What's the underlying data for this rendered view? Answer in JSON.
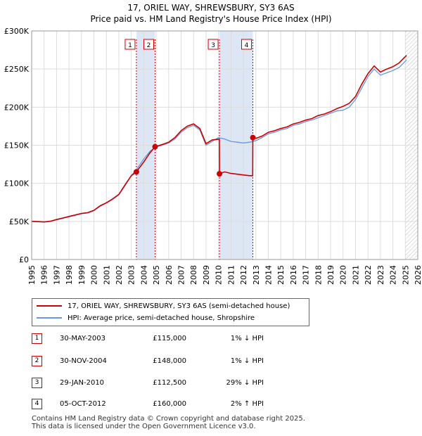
{
  "title": "17, ORIEL WAY, SHREWSBURY, SY3 6AS",
  "subtitle": "Price paid vs. HM Land Registry's House Price Index (HPI)",
  "colors": {
    "property": "#cc0000",
    "hpi": "#6699dd",
    "shade": "#dde6f5",
    "grid": "#dddddd",
    "marker_border": "#cc0000"
  },
  "legend": {
    "property_label": "17, ORIEL WAY, SHREWSBURY, SY3 6AS (semi-detached house)",
    "hpi_label": "HPI: Average price, semi-detached house, Shropshire"
  },
  "transactions": [
    {
      "num": "1",
      "date": "30-MAY-2003",
      "price": "£115,000",
      "hpi": "1% ↓ HPI"
    },
    {
      "num": "2",
      "date": "30-NOV-2004",
      "price": "£148,000",
      "hpi": "1% ↓ HPI"
    },
    {
      "num": "3",
      "date": "29-JAN-2010",
      "price": "£112,500",
      "hpi": "29% ↓ HPI"
    },
    {
      "num": "4",
      "date": "05-OCT-2012",
      "price": "£160,000",
      "hpi": "2% ↑ HPI"
    }
  ],
  "footer": {
    "line1": "Contains HM Land Registry data © Crown copyright and database right 2025.",
    "line2": "This data is licensed under the Open Government Licence v3.0."
  },
  "chart_data": {
    "type": "line",
    "title": "17, ORIEL WAY, SHREWSBURY, SY3 6AS",
    "subtitle": "Price paid vs. HM Land Registry's House Price Index (HPI)",
    "xlabel": "",
    "ylabel": "",
    "xlim": [
      1995,
      2026
    ],
    "ylim": [
      0,
      300000
    ],
    "x_ticks": [
      1995,
      1996,
      1997,
      1998,
      1999,
      2000,
      2001,
      2002,
      2003,
      2004,
      2005,
      2006,
      2007,
      2008,
      2009,
      2010,
      2011,
      2012,
      2013,
      2014,
      2015,
      2016,
      2017,
      2018,
      2019,
      2020,
      2021,
      2022,
      2023,
      2024,
      2025,
      2026
    ],
    "y_ticks": [
      {
        "value": 0,
        "label": "£0"
      },
      {
        "value": 50000,
        "label": "£50K"
      },
      {
        "value": 100000,
        "label": "£100K"
      },
      {
        "value": 150000,
        "label": "£150K"
      },
      {
        "value": 200000,
        "label": "£200K"
      },
      {
        "value": 250000,
        "label": "£250K"
      },
      {
        "value": 300000,
        "label": "£300K"
      }
    ],
    "grid": true,
    "legend_position": "bottom",
    "shaded_ranges": [
      [
        2003.41,
        2004.91
      ],
      [
        2010.08,
        2012.76
      ]
    ],
    "forecast_start": 2025.0,
    "sales": [
      {
        "label": "1",
        "x": 2003.41,
        "y": 115000
      },
      {
        "label": "2",
        "x": 2004.91,
        "y": 148000
      },
      {
        "label": "3",
        "x": 2010.08,
        "y": 112500
      },
      {
        "label": "4",
        "x": 2012.76,
        "y": 160000
      }
    ],
    "series": [
      {
        "name": "HPI: Average price, semi-detached house, Shropshire",
        "x": [
          1995,
          1995.5,
          1996,
          1996.5,
          1997,
          1997.5,
          1998,
          1998.5,
          1999,
          1999.5,
          2000,
          2000.5,
          2001,
          2001.5,
          2002,
          2002.5,
          2003,
          2003.5,
          2004,
          2004.5,
          2005,
          2005.5,
          2006,
          2006.5,
          2007,
          2007.5,
          2008,
          2008.5,
          2009,
          2009.5,
          2010,
          2010.5,
          2011,
          2011.5,
          2012,
          2012.5,
          2013,
          2013.5,
          2014,
          2014.5,
          2015,
          2015.5,
          2016,
          2016.5,
          2017,
          2017.5,
          2018,
          2018.5,
          2019,
          2019.5,
          2020,
          2020.5,
          2021,
          2021.5,
          2022,
          2022.5,
          2023,
          2023.5,
          2024,
          2024.5,
          2025.1
        ],
        "values": [
          50000,
          49500,
          49000,
          50000,
          52000,
          54000,
          56000,
          58000,
          60000,
          61000,
          64000,
          70000,
          74000,
          79000,
          85000,
          97000,
          110000,
          120000,
          132000,
          142000,
          148000,
          150000,
          153000,
          158000,
          167000,
          173000,
          176000,
          170000,
          150000,
          155000,
          160000,
          158000,
          155000,
          154000,
          153000,
          154000,
          156000,
          160000,
          165000,
          167000,
          170000,
          172000,
          176000,
          178000,
          181000,
          183000,
          186000,
          189000,
          192000,
          195000,
          196000,
          200000,
          210000,
          225000,
          240000,
          250000,
          242000,
          245000,
          248000,
          252000,
          262000
        ]
      },
      {
        "name": "17, ORIEL WAY, SHREWSBURY, SY3 6AS (semi-detached house)",
        "x": [
          1995,
          1995.5,
          1996,
          1996.5,
          1997,
          1997.5,
          1998,
          1998.5,
          1999,
          1999.5,
          2000,
          2000.5,
          2001,
          2001.5,
          2002,
          2002.5,
          2003,
          2003.41,
          2004,
          2004.5,
          2004.91,
          2005.5,
          2006,
          2006.5,
          2007,
          2007.5,
          2008,
          2008.5,
          2009,
          2009.5,
          2010.07,
          2010.08,
          2010.5,
          2011,
          2011.5,
          2012,
          2012.5,
          2012.75,
          2012.76,
          2013,
          2013.5,
          2014,
          2014.5,
          2015,
          2015.5,
          2016,
          2016.5,
          2017,
          2017.5,
          2018,
          2018.5,
          2019,
          2019.5,
          2020,
          2020.5,
          2021,
          2021.5,
          2022,
          2022.5,
          2023,
          2023.5,
          2024,
          2024.5,
          2025.1
        ],
        "values": [
          50000,
          49800,
          49300,
          50200,
          52500,
          54500,
          56500,
          58500,
          60500,
          61500,
          64500,
          70500,
          74500,
          79500,
          85500,
          98000,
          110000,
          115000,
          128000,
          140000,
          148000,
          151000,
          154000,
          160000,
          169000,
          175000,
          178000,
          172000,
          152000,
          157000,
          158000,
          112500,
          115000,
          113000,
          112000,
          111000,
          110000,
          110000,
          160000,
          159000,
          162000,
          167000,
          169000,
          172000,
          174000,
          178000,
          180000,
          183000,
          185000,
          189000,
          191000,
          194000,
          198000,
          201000,
          205000,
          214000,
          230000,
          244000,
          254000,
          246000,
          250000,
          253000,
          258000,
          268000
        ]
      }
    ]
  }
}
